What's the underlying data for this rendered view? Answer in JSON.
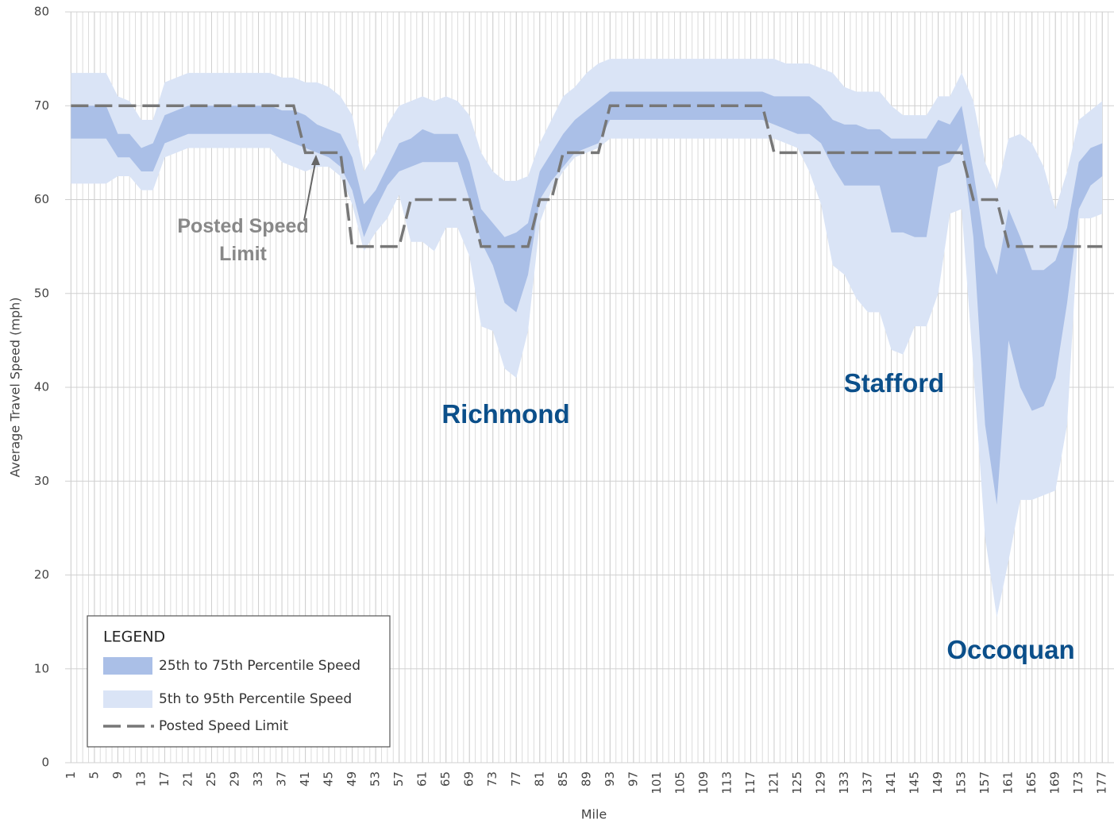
{
  "chart_data": {
    "type": "band",
    "y_label": "Average Travel Speed (mph)",
    "x_label": "Mile",
    "x": [
      1,
      3,
      5,
      7,
      9,
      11,
      13,
      15,
      17,
      19,
      21,
      23,
      25,
      27,
      29,
      31,
      33,
      35,
      37,
      39,
      41,
      43,
      45,
      47,
      49,
      51,
      53,
      55,
      57,
      59,
      61,
      63,
      65,
      67,
      69,
      71,
      73,
      75,
      77,
      79,
      81,
      83,
      85,
      87,
      89,
      91,
      93,
      95,
      97,
      99,
      101,
      103,
      105,
      107,
      109,
      111,
      113,
      115,
      117,
      119,
      121,
      123,
      125,
      127,
      129,
      131,
      133,
      135,
      137,
      139,
      141,
      143,
      145,
      147,
      149,
      151,
      153,
      155,
      157,
      159,
      161,
      163,
      165,
      167,
      169,
      171,
      173,
      175,
      177
    ],
    "xlim": [
      0,
      179
    ],
    "xticks": [
      1,
      5,
      9,
      13,
      17,
      21,
      25,
      29,
      33,
      37,
      41,
      45,
      49,
      53,
      57,
      61,
      65,
      69,
      73,
      77,
      81,
      85,
      89,
      93,
      97,
      101,
      105,
      109,
      113,
      117,
      121,
      125,
      129,
      133,
      137,
      141,
      145,
      149,
      153,
      157,
      161,
      165,
      169,
      173,
      177
    ],
    "ylim": [
      0,
      80
    ],
    "yticks": [
      0,
      10,
      20,
      30,
      40,
      50,
      60,
      70,
      80
    ],
    "grid": true,
    "legend_title": "LEGEND",
    "legend": "lower left",
    "series": [
      {
        "name": "25th to 75th Percentile Speed",
        "color": "#aabfe7",
        "low": [
          66.5,
          66.5,
          66.5,
          66.5,
          64.5,
          64.5,
          63,
          63,
          66,
          66.5,
          67,
          67,
          67,
          67,
          67,
          67,
          67,
          67,
          66.5,
          66,
          65.5,
          65,
          64.5,
          63.5,
          61,
          56,
          59,
          61.5,
          63,
          63.5,
          64,
          64,
          64,
          64,
          60,
          55.5,
          53,
          49,
          48,
          52,
          60,
          62,
          63.5,
          65,
          65.5,
          66,
          68.5,
          68.5,
          68.5,
          68.5,
          68.5,
          68.5,
          68.5,
          68.5,
          68.5,
          68.5,
          68.5,
          68.5,
          68.5,
          68.5,
          68,
          67.5,
          67,
          67,
          66,
          63.5,
          61.5,
          61.5,
          61.5,
          61.5,
          56.5,
          56.5,
          56,
          56,
          63.5,
          64,
          66,
          56,
          36,
          27.5,
          45,
          40,
          37.5,
          38,
          41,
          49,
          59,
          61.5,
          62.5
        ],
        "high": [
          70,
          70,
          70,
          70,
          67,
          67,
          65.5,
          66,
          69,
          69.5,
          70,
          70,
          70,
          70,
          70,
          70,
          70,
          70,
          69.5,
          69.5,
          69,
          68,
          67.5,
          67,
          64.5,
          59.5,
          61,
          63.5,
          66,
          66.5,
          67.5,
          67,
          67,
          67,
          64,
          59,
          57.5,
          56,
          56.5,
          57.5,
          63,
          65,
          67,
          68.5,
          69.5,
          70.5,
          71.5,
          71.5,
          71.5,
          71.5,
          71.5,
          71.5,
          71.5,
          71.5,
          71.5,
          71.5,
          71.5,
          71.5,
          71.5,
          71.5,
          71,
          71,
          71,
          71,
          70,
          68.5,
          68,
          68,
          67.5,
          67.5,
          66.5,
          66.5,
          66.5,
          66.5,
          68.5,
          68,
          70,
          63,
          55,
          52,
          59,
          56,
          52.5,
          52.5,
          53.5,
          57,
          64,
          65.5,
          66
        ]
      },
      {
        "name": "5th to 95th Percentile Speed",
        "color": "#dae4f6",
        "low": [
          61.7,
          61.7,
          61.7,
          61.7,
          62.5,
          62.5,
          61,
          61,
          64.5,
          65,
          65.5,
          65.5,
          65.5,
          65.5,
          65.5,
          65.5,
          65.5,
          65.5,
          64,
          63.5,
          63,
          63.5,
          63.5,
          62.5,
          59.5,
          54.5,
          56.5,
          58,
          60.5,
          55.5,
          55.5,
          54.5,
          57,
          57,
          54,
          46.5,
          46,
          42,
          41,
          46,
          57.5,
          61,
          63,
          64.5,
          65,
          65.5,
          66.5,
          66.5,
          66.5,
          66.5,
          66.5,
          66.5,
          66.5,
          66.5,
          66.5,
          66.5,
          66.5,
          66.5,
          66.5,
          66.5,
          66.5,
          66,
          65.5,
          63,
          59.5,
          53,
          52,
          49.5,
          48,
          48,
          44,
          43.5,
          46.5,
          46.5,
          50,
          58.5,
          59,
          42,
          24,
          15.5,
          21.5,
          28,
          28,
          28.5,
          29,
          36,
          58,
          58,
          58.5
        ],
        "high": [
          73.5,
          73.5,
          73.5,
          73.5,
          71,
          70.5,
          68.5,
          68.5,
          72.5,
          73,
          73.5,
          73.5,
          73.5,
          73.5,
          73.5,
          73.5,
          73.5,
          73.5,
          73,
          73,
          72.5,
          72.5,
          72,
          71,
          69,
          63,
          65,
          68,
          70,
          70.5,
          71,
          70.5,
          71,
          70.5,
          69,
          65,
          63,
          62,
          62,
          62.5,
          66,
          68.5,
          71,
          72,
          73.5,
          74.5,
          75,
          75,
          75,
          75,
          75,
          75,
          75,
          75,
          75,
          75,
          75,
          75,
          75,
          75,
          75,
          74.5,
          74.5,
          74.5,
          74,
          73.5,
          72,
          71.5,
          71.5,
          71.5,
          70,
          69,
          69,
          69,
          71,
          71,
          73.5,
          70.5,
          64,
          61,
          66.5,
          67,
          66,
          63.5,
          59,
          63,
          68.5,
          69.5,
          70.5
        ]
      },
      {
        "name": "Posted Speed Limit",
        "color": "#777777",
        "values": [
          70,
          70,
          70,
          70,
          70,
          70,
          70,
          70,
          70,
          70,
          70,
          70,
          70,
          70,
          70,
          70,
          70,
          70,
          70,
          70,
          65,
          65,
          65,
          65,
          55,
          55,
          55,
          55,
          55,
          60,
          60,
          60,
          60,
          60,
          60,
          55,
          55,
          55,
          55,
          55,
          60,
          60,
          65,
          65,
          65,
          65,
          70,
          70,
          70,
          70,
          70,
          70,
          70,
          70,
          70,
          70,
          70,
          70,
          70,
          70,
          65,
          65,
          65,
          65,
          65,
          65,
          65,
          65,
          65,
          65,
          65,
          65,
          65,
          65,
          65,
          65,
          65,
          60,
          60,
          60,
          55,
          55,
          55,
          55,
          55,
          55,
          55,
          55,
          55
        ]
      }
    ],
    "annotations": [
      {
        "text": "Posted Speed Limit"
      },
      {
        "text": "Richmond"
      },
      {
        "text": "Stafford"
      },
      {
        "text": "Occoquan"
      }
    ]
  }
}
